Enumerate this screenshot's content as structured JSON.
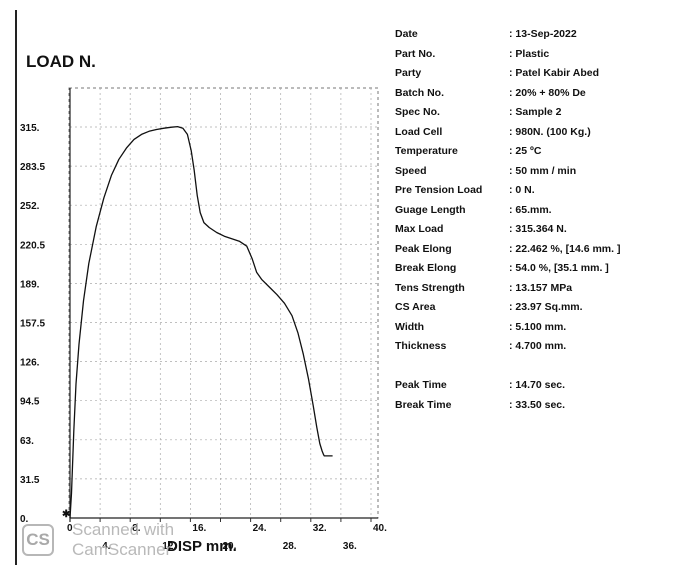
{
  "chart_data": {
    "type": "line",
    "ylabel": "LOAD N.",
    "xlabel": "DISP mm.",
    "y_ticks": [
      "0.",
      "31.5",
      "63.",
      "94.5",
      "126.",
      "157.5",
      "189.",
      "220.5",
      "252.",
      "283.5",
      "315."
    ],
    "y_tick_values": [
      0,
      31.5,
      63,
      94.5,
      126,
      157.5,
      189,
      220.5,
      252,
      283.5,
      315
    ],
    "x_ticks": [
      "0",
      "4.",
      "8.",
      "12.",
      "16.",
      "20.",
      "24.",
      "28.",
      "32.",
      "36.",
      "40."
    ],
    "x_tick_values": [
      0,
      4,
      8,
      12,
      16,
      20,
      24,
      28,
      32,
      36,
      40
    ],
    "xlim": [
      0,
      40
    ],
    "ylim": [
      0,
      345
    ],
    "grid": true,
    "series": [
      {
        "x": [
          0,
          0.2,
          0.5,
          0.8,
          1.2,
          1.8,
          2.5,
          3.5,
          4.5,
          5.5,
          6.5,
          7.5,
          8.5,
          9.5,
          10.5,
          11.5,
          12.5,
          13.5,
          14.3,
          15,
          15.6,
          16.1,
          16.5,
          16.9,
          17.3,
          17.8,
          18.5,
          19.5,
          20.5,
          21.5,
          22.5,
          23.5,
          24.2,
          24.8,
          25.5,
          26.5,
          27.5,
          28.5,
          29.5,
          30.3,
          31,
          31.7,
          32.3,
          32.8,
          33.2,
          33.5,
          33.7,
          33.8,
          34.9
        ],
        "y": [
          0,
          20,
          70,
          108,
          140,
          175,
          205,
          235,
          258,
          276,
          289,
          298,
          305,
          309,
          311.5,
          313,
          314,
          314.8,
          315.36,
          314,
          309,
          296,
          280,
          260,
          246,
          238,
          234,
          230,
          227,
          225,
          223,
          219,
          209,
          198,
          192,
          186,
          180,
          173,
          163,
          149,
          132,
          112,
          91,
          73,
          60,
          54,
          51,
          50,
          50
        ]
      }
    ]
  },
  "info": [
    {
      "key": "Date",
      "value": ": 13-Sep-2022"
    },
    {
      "key": "Part No.",
      "value": ": Plastic"
    },
    {
      "key": "Party",
      "value": ": Patel Kabir Abed"
    },
    {
      "key": "Batch No.",
      "value": ": 20% + 80% De"
    },
    {
      "key": "Spec No.",
      "value": ": Sample 2"
    },
    {
      "key": "Load Cell",
      "value": ": 980N.  (100 Kg.)"
    },
    {
      "key": "Temperature",
      "value": ": 25 ºC"
    },
    {
      "key": "Speed",
      "value": ": 50 mm / min"
    },
    {
      "key": "Pre Tension Load",
      "value": ": 0 N."
    },
    {
      "key": "Guage Length",
      "value": ": 65.mm."
    },
    {
      "key": "Max Load",
      "value": ": 315.364 N."
    },
    {
      "key": "Peak Elong",
      "value": ": 22.462 %, [14.6 mm. ]"
    },
    {
      "key": "Break Elong",
      "value": ": 54.0 %, [35.1 mm. ]"
    },
    {
      "key": "Tens Strength",
      "value": ": 13.157 MPa"
    },
    {
      "key": "CS Area",
      "value": ": 23.97 Sq.mm."
    },
    {
      "key": "Width",
      "value": ": 5.100 mm."
    },
    {
      "key": "Thickness",
      "value": ": 4.700 mm."
    },
    {
      "key": "Peak Time",
      "value": ": 14.70 sec."
    },
    {
      "key": "Break Time",
      "value": ": 33.50 sec."
    }
  ],
  "watermark": {
    "badge": "CS",
    "line1": "Scanned with",
    "line2": "CamScanner"
  }
}
